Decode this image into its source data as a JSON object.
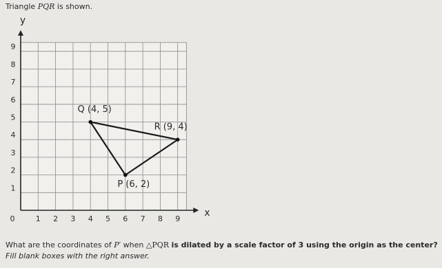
{
  "intro": {
    "before": "Triangle",
    "name": "PQR",
    "after": "is shown."
  },
  "graph": {
    "xlabel": "x",
    "ylabel": "y",
    "xlim": [
      0,
      9.5
    ],
    "ylim": [
      0,
      9.5
    ],
    "xticks": [
      0,
      1,
      2,
      3,
      4,
      5,
      6,
      7,
      8,
      9
    ],
    "yticks": [
      1,
      2,
      3,
      4,
      5,
      6,
      7,
      8,
      9
    ],
    "points": [
      {
        "label": "Q (4, 5)",
        "x": 4,
        "y": 5
      },
      {
        "label": "R (9, 4)",
        "x": 9,
        "y": 4
      },
      {
        "label": "P (6, 2)",
        "x": 6,
        "y": 2
      }
    ]
  },
  "question": {
    "before": "What are the coordinates of",
    "point": "P′",
    "when": "when",
    "tri": "△PQR",
    "bold": "is dilated by a scale factor of 3 using the origin as the center?"
  },
  "instruction": "Fill blank boxes with the right answer."
}
